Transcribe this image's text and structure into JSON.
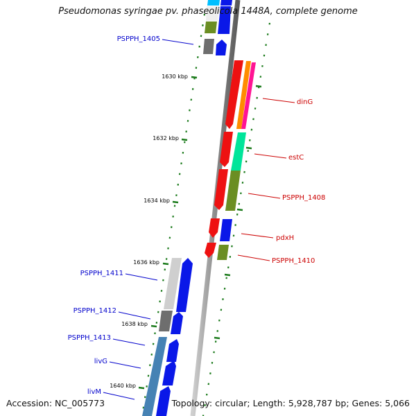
{
  "title": "Pseudomonas syringae pv. phaseolicola 1448A, complete genome",
  "footer": {
    "accession": "Accession: NC_005773",
    "info": "Topology: circular; Length: 5,928,787 bp; Genes: 5,066"
  },
  "colors": {
    "backbone": "#8c8c8c",
    "forward_label": "#0000cc",
    "reverse_label": "#cc0000",
    "tick": "#1a7a1a",
    "blue": "#0a18e8",
    "red": "#ee1111",
    "orange": "#ff8c00",
    "magenta": "#ff1493",
    "aqua": "#00e59a",
    "olive": "#6b8e23",
    "gray": "#808080",
    "lightgray": "#cfcfcf",
    "steel": "#4682b4",
    "cyan": "#00bfff"
  },
  "kbp_labels": [
    "1630 kbp",
    "1632 kbp",
    "1634 kbp",
    "1636 kbp",
    "1638 kbp",
    "1640 kbp"
  ],
  "gene_labels": {
    "forward": [
      "PSPPH_1405",
      "PSPPH_1411",
      "PSPPH_1412",
      "PSPPH_1413",
      "livG",
      "livM"
    ],
    "reverse": [
      "dinG",
      "estC",
      "PSPPH_1408",
      "pdxH",
      "PSPPH_1410"
    ]
  }
}
